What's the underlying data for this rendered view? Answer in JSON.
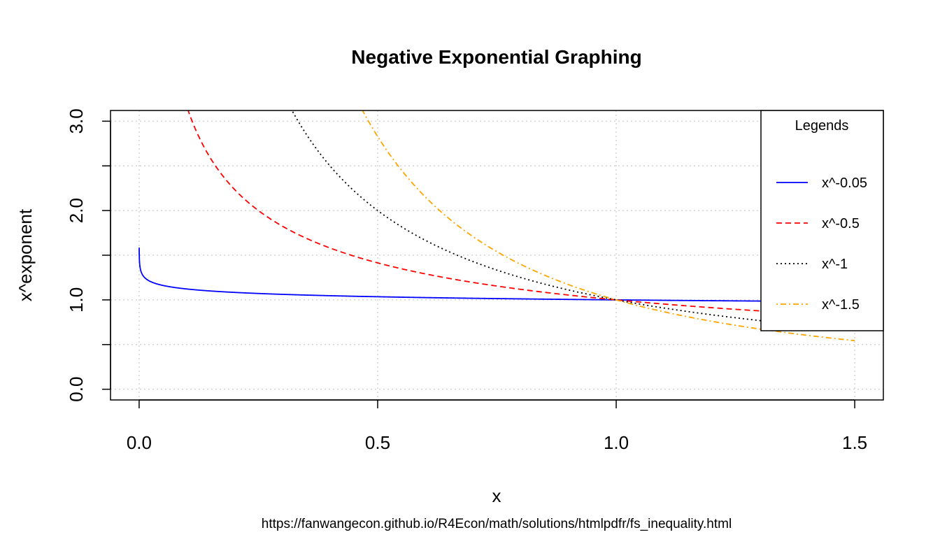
{
  "chart_data": {
    "type": "line",
    "title": "Negative Exponential Graphing",
    "xlabel": "x",
    "ylabel": "x^exponent",
    "caption": "https://fanwangecon.github.io/R4Econ/math/solutions/htmlpdfr/fs_inequality.html",
    "xlim": [
      -0.06,
      1.56
    ],
    "ylim": [
      -0.12,
      3.12
    ],
    "x_ticks": [
      0.0,
      0.5,
      1.0,
      1.5
    ],
    "x_tick_labels": [
      "0.0",
      "0.5",
      "1.0",
      "1.5"
    ],
    "y_ticks": [
      0.0,
      1.0,
      2.0,
      3.0
    ],
    "y_tick_labels": [
      "0.0",
      "1.0",
      "2.0",
      "3.0"
    ],
    "grid": true,
    "grid_x": [
      0.0,
      0.5,
      1.0,
      1.5
    ],
    "grid_y": [
      0.0,
      0.5,
      1.0,
      1.5,
      2.0,
      2.5,
      3.0
    ],
    "legend": {
      "title": "Legends",
      "position": "top-right"
    },
    "x_range": [
      0.0001,
      1.5
    ],
    "series": [
      {
        "name": "x^-0.05",
        "exponent": -0.05,
        "color": "#0000ff",
        "dash": "solid"
      },
      {
        "name": "x^-0.5",
        "exponent": -0.5,
        "color": "#ff0000",
        "dash": "dashed"
      },
      {
        "name": "x^-1",
        "exponent": -1,
        "color": "#000000",
        "dash": "dotted"
      },
      {
        "name": "x^-1.5",
        "exponent": -1.5,
        "color": "#ffa500",
        "dash": "dotdash"
      }
    ]
  }
}
